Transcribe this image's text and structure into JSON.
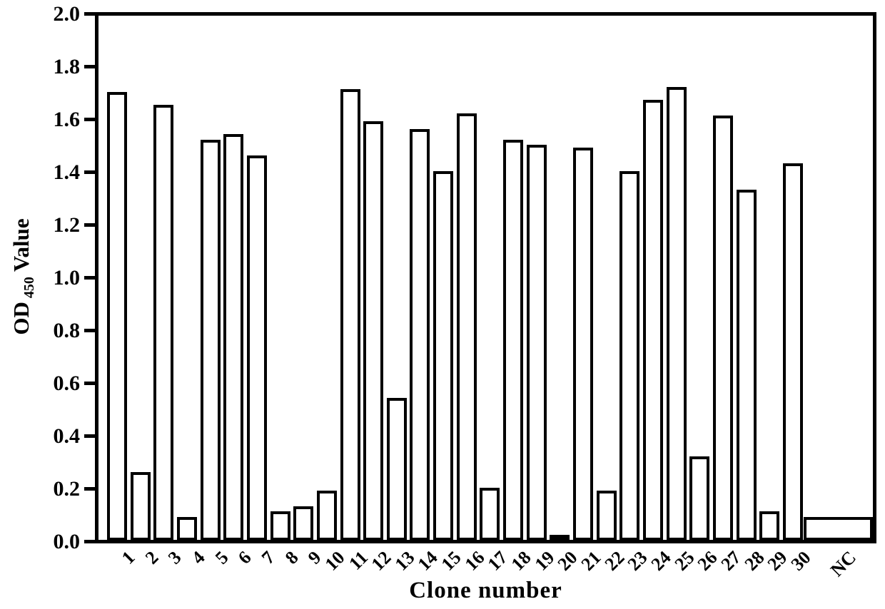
{
  "figure": {
    "background": "#ffffff",
    "ink_color": "#000000"
  },
  "chart_data": {
    "type": "bar",
    "title": "",
    "xlabel": "Clone number",
    "ylabel": "OD 450 Value",
    "ylabel_parts": {
      "prefix": "OD",
      "subscript": "450",
      "suffix": "Value"
    },
    "ylim": [
      0.0,
      2.0
    ],
    "ytick_step": 0.2,
    "yticks": [
      "0.0",
      "0.2",
      "0.4",
      "0.6",
      "0.8",
      "1.0",
      "1.2",
      "1.4",
      "1.6",
      "1.8",
      "2.0"
    ],
    "grid": false,
    "legend": null,
    "bar_fill": "#ffffff",
    "bar_border": "#000000",
    "categories": [
      "1",
      "2",
      "3",
      "4",
      "5",
      "6",
      "7",
      "8",
      "9",
      "10",
      "11",
      "12",
      "13",
      "14",
      "15",
      "16",
      "17",
      "18",
      "19",
      "20",
      "21",
      "22",
      "23",
      "24",
      "25",
      "26",
      "27",
      "28",
      "29",
      "30",
      "NC"
    ],
    "values": [
      1.7,
      0.26,
      1.65,
      0.09,
      1.52,
      1.54,
      1.46,
      0.11,
      0.13,
      0.19,
      1.71,
      1.59,
      0.54,
      1.56,
      1.4,
      1.62,
      0.2,
      1.52,
      1.5,
      0.02,
      1.49,
      0.19,
      1.4,
      1.67,
      1.72,
      0.32,
      1.61,
      1.33,
      0.11,
      1.43,
      0.09
    ],
    "nc_bar_wider": true
  }
}
